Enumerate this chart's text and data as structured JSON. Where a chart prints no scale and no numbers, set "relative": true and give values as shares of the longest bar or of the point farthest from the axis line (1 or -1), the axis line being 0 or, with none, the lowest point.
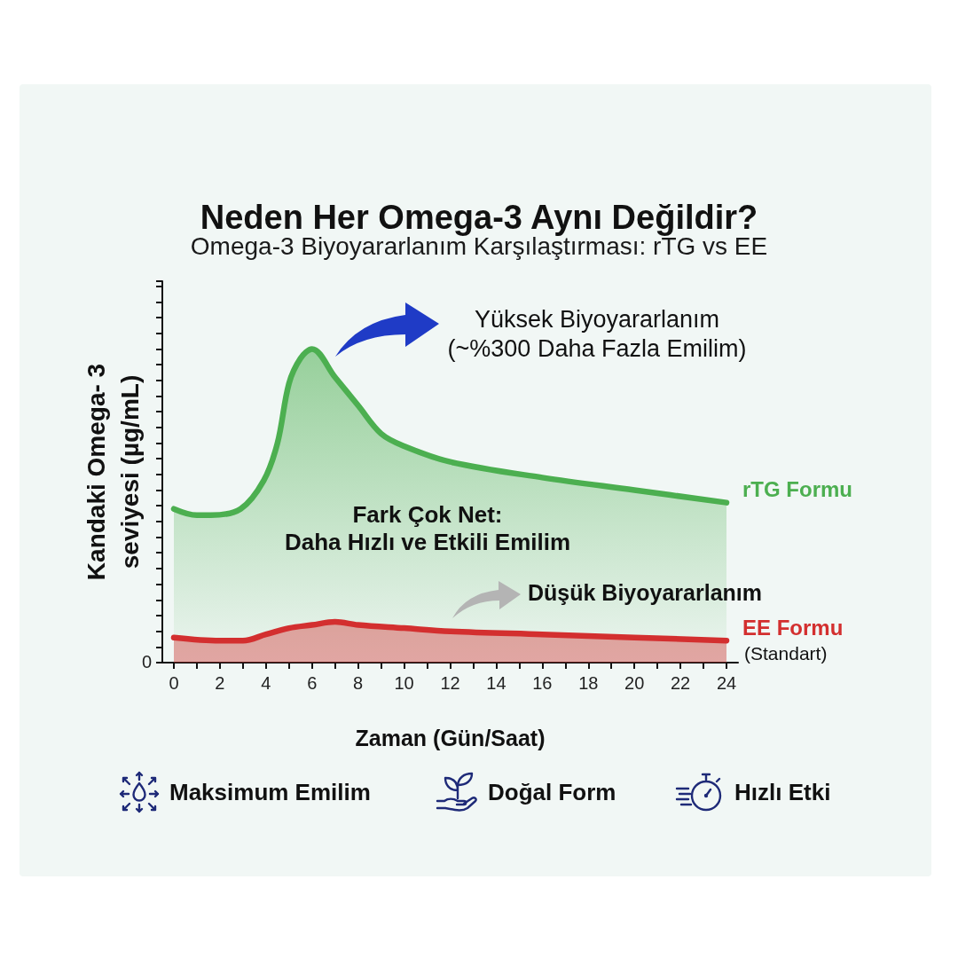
{
  "chart_data": {
    "type": "area",
    "title": "Neden Her Omega-3 Aynı Değildir?",
    "subtitle": "Omega-3 Biyoyararlanım Karşılaştırması: rTG vs EE",
    "xlabel": "Zaman (Gün/Saat)",
    "ylabel": "Kandaki Omega- 3\nseviyesi (µg/mL)",
    "relative": true,
    "xlim": [
      -0.5,
      24.5
    ],
    "xticks": [
      0,
      {
        "value": 1,
        "label": null
      },
      2,
      {
        "value": 3,
        "label": null
      },
      4,
      {
        "value": 5,
        "label": null
      },
      6,
      {
        "value": 7,
        "label": null
      },
      8,
      {
        "value": 9,
        "label": null
      },
      10,
      {
        "value": 11,
        "label": null
      },
      12,
      {
        "value": 13,
        "label": null
      },
      14,
      {
        "value": 15,
        "label": null
      },
      16,
      {
        "value": 17,
        "label": null
      },
      18,
      {
        "value": 19,
        "label": null
      },
      20,
      {
        "value": 21,
        "label": null
      },
      22,
      {
        "value": 23,
        "label": null
      },
      24
    ],
    "legend": false,
    "grid": false,
    "series": [
      {
        "name": "rTG Formu",
        "color": "#4caf50",
        "x": [
          0,
          1,
          1.6,
          2.9,
          3.9,
          4.5,
          5,
          5.5,
          6,
          7,
          8,
          9,
          10,
          12,
          16,
          20,
          24
        ],
        "values": [
          0.49,
          0.47,
          0.47,
          0.49,
          0.58,
          0.7,
          0.89,
          0.97,
          1,
          0.91,
          0.82,
          0.73,
          0.69,
          0.64,
          0.59,
          0.55,
          0.51
        ]
      },
      {
        "name": "EE Formu",
        "color": "#d32f2f",
        "x": [
          0,
          2,
          3,
          4,
          5,
          6,
          7,
          8,
          10,
          12,
          16,
          20,
          24
        ],
        "values": [
          0.08,
          0.07,
          0.07,
          0.09,
          0.11,
          0.12,
          0.13,
          0.12,
          0.11,
          0.1,
          0.09,
          0.08,
          0.07
        ]
      }
    ],
    "annotations": [
      "Yüksek Biyoyararlanım\n(~%300 Daha Fazla Emilim)",
      "Fark Çok Net:\nDaha Hızlı ve Etkili Emilim",
      "Düşük Biyoyararlanım",
      {
        "text": "(Standart)",
        "x": 24,
        "y": 0.07
      },
      "0",
      "Maksimum Emilim",
      "Doğal Form",
      "Hızlı Etki"
    ]
  }
}
